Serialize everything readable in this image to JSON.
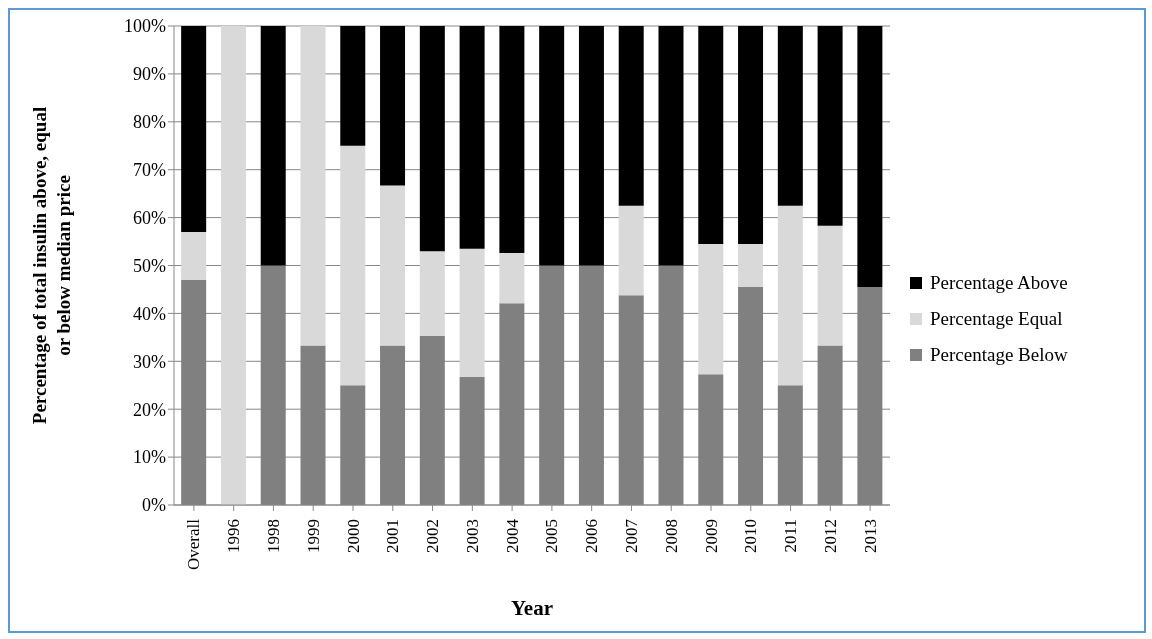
{
  "chart_data": {
    "type": "bar",
    "stacked": true,
    "xlabel": "Year",
    "ylabel": "Percentage of total insulin above, equal or below median price",
    "categories": [
      "Overall",
      "1996",
      "1998",
      "1999",
      "2000",
      "2001",
      "2002",
      "2003",
      "2004",
      "2005",
      "2006",
      "2007",
      "2008",
      "2009",
      "2010",
      "2011",
      "2012",
      "2013"
    ],
    "series": [
      {
        "name": "Percentage Below",
        "color": "#808080",
        "values": [
          47,
          0,
          50,
          33.3,
          25,
          33.3,
          35.3,
          26.7,
          42.1,
          50,
          50,
          43.8,
          50,
          27.3,
          45.5,
          25,
          33.3,
          45.5
        ]
      },
      {
        "name": "Percentage Equal",
        "color": "#d9d9d9",
        "values": [
          10,
          100,
          0,
          66.7,
          50,
          33.4,
          17.7,
          26.8,
          10.5,
          0,
          0,
          18.7,
          0,
          27.2,
          9,
          37.5,
          25,
          0
        ]
      },
      {
        "name": "Percentage Above",
        "color": "#000000",
        "values": [
          43,
          0,
          50,
          0,
          25,
          33.3,
          47,
          46.5,
          47.4,
          50,
          50,
          37.5,
          50,
          45.5,
          45.5,
          37.5,
          41.7,
          54.5
        ]
      }
    ],
    "ylim": [
      0,
      100
    ],
    "yticks": [
      {
        "value": 0,
        "label": "0%"
      },
      {
        "value": 10,
        "label": "10%"
      },
      {
        "value": 20,
        "label": "20%"
      },
      {
        "value": 30,
        "label": "30%"
      },
      {
        "value": 40,
        "label": "40%"
      },
      {
        "value": 50,
        "label": "50%"
      },
      {
        "value": 60,
        "label": "60%"
      },
      {
        "value": 70,
        "label": "70%"
      },
      {
        "value": 80,
        "label": "80%"
      },
      {
        "value": 90,
        "label": "90%"
      },
      {
        "value": 100,
        "label": "100%"
      }
    ],
    "grid": "y",
    "legend": "right"
  }
}
